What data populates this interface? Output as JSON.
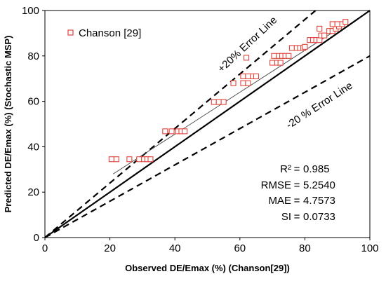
{
  "chart_data": {
    "type": "scatter",
    "xlabel": "Observed DE/Emax (%) (Chanson[29])",
    "ylabel": "Predicted DE/Emax (%) (Stochastic MSP)",
    "xlim": [
      0,
      100
    ],
    "ylim": [
      0,
      100
    ],
    "x_ticks": [
      "0",
      "20",
      "40",
      "60",
      "80",
      "100"
    ],
    "y_ticks": [
      "0",
      "20",
      "40",
      "60",
      "80",
      "100"
    ],
    "grid": false,
    "legend_position": "top-left",
    "series": [
      {
        "name": "Chanson [29]",
        "marker": "open-square",
        "color": "#e0443a",
        "points": [
          [
            20.5,
            34.5
          ],
          [
            22,
            34.5
          ],
          [
            26,
            34.5
          ],
          [
            29,
            34.5
          ],
          [
            30.5,
            34.5
          ],
          [
            31.5,
            34.5
          ],
          [
            32.5,
            34.5
          ],
          [
            37,
            46.8
          ],
          [
            39,
            46.8
          ],
          [
            41,
            46.8
          ],
          [
            42,
            46.8
          ],
          [
            43,
            46.8
          ],
          [
            52,
            59.7
          ],
          [
            53.5,
            59.7
          ],
          [
            55,
            59.7
          ],
          [
            58,
            68
          ],
          [
            61,
            68
          ],
          [
            62.5,
            68
          ],
          [
            61,
            71
          ],
          [
            62.5,
            71
          ],
          [
            64,
            71
          ],
          [
            65,
            71
          ],
          [
            62,
            79.2
          ],
          [
            70,
            77
          ],
          [
            71.5,
            77
          ],
          [
            72.5,
            77
          ],
          [
            70.5,
            80
          ],
          [
            72,
            80
          ],
          [
            73,
            80
          ],
          [
            74,
            80
          ],
          [
            75,
            80
          ],
          [
            76,
            83.5
          ],
          [
            77.5,
            83.5
          ],
          [
            78.5,
            83.5
          ],
          [
            79.5,
            83.5
          ],
          [
            80,
            84
          ],
          [
            81.5,
            87
          ],
          [
            82.5,
            87
          ],
          [
            83.5,
            87
          ],
          [
            84.5,
            87
          ],
          [
            85,
            89
          ],
          [
            86,
            89
          ],
          [
            84.5,
            92
          ],
          [
            87.5,
            91
          ],
          [
            88.5,
            91
          ],
          [
            89.5,
            92
          ],
          [
            90.5,
            93
          ],
          [
            88.5,
            94
          ],
          [
            90,
            94
          ],
          [
            91.5,
            94
          ],
          [
            92.5,
            95
          ]
        ]
      }
    ],
    "reference_lines": [
      {
        "label": "",
        "style": "solid",
        "points": [
          [
            0,
            0
          ],
          [
            100,
            100
          ]
        ]
      },
      {
        "label": "+20% Error Line",
        "style": "dashed",
        "points": [
          [
            0,
            0
          ],
          [
            83.3,
            100
          ]
        ]
      },
      {
        "label": "-20 % Error Line",
        "style": "dashed",
        "points": [
          [
            0,
            0
          ],
          [
            100,
            80
          ]
        ]
      },
      {
        "label": "",
        "style": "trend",
        "points": [
          [
            21,
            28
          ],
          [
            92.5,
            94
          ]
        ]
      }
    ],
    "stats": [
      {
        "label": "R²",
        "value": "0.985"
      },
      {
        "label": "RMSE",
        "value": "5.2540"
      },
      {
        "label": "MAE",
        "value": "4.7573"
      },
      {
        "label": "SI",
        "value": "0.0733"
      }
    ]
  }
}
